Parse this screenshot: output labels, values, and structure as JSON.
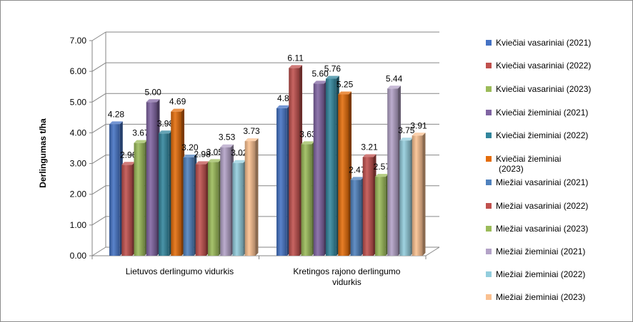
{
  "chart_data": {
    "type": "bar",
    "title": "",
    "xlabel": "",
    "ylabel": "Derlingumas t/ha",
    "ylim": [
      0,
      7
    ],
    "y_ticks": [
      "0.00",
      "1.00",
      "2.00",
      "3.00",
      "4.00",
      "5.00",
      "6.00",
      "7.00"
    ],
    "categories": [
      "Lietuvos derlingumo  vidurkis",
      "Kretingos rajono derlingumo vidurkis"
    ],
    "category_lines": [
      [
        "Lietuvos derlingumo  vidurkis"
      ],
      [
        "Kretingos rajono derlingumo",
        "vidurkis"
      ]
    ],
    "legend_position": "right",
    "series": [
      {
        "name": "Kviečiai vasariniai (2021)",
        "color": "#4472C4",
        "values": [
          4.28,
          4.8
        ],
        "labels": [
          "4.28",
          "4.8"
        ]
      },
      {
        "name": "Kviečiai vasariniai (2022)",
        "color": "#C0504D",
        "values": [
          2.96,
          6.11
        ],
        "labels": [
          "2.96",
          "6.11"
        ]
      },
      {
        "name": "Kviečiai vasariniai (2023)",
        "color": "#9BBB59",
        "values": [
          3.67,
          3.63
        ],
        "labels": [
          "3.67",
          "3.63"
        ]
      },
      {
        "name": "Kviečiai žieminiai (2021)",
        "color": "#8064A2",
        "values": [
          5.0,
          5.6
        ],
        "labels": [
          "5.00",
          "5.60"
        ]
      },
      {
        "name": "Kviečiai žieminiai (2022)",
        "color": "#31859C",
        "values": [
          3.98,
          5.76
        ],
        "labels": [
          "3.98",
          "5.76"
        ]
      },
      {
        "name": "Kviečiai žieminiai (2023)",
        "color": "#E46C0A",
        "values": [
          4.69,
          5.25
        ],
        "labels": [
          "4.69",
          "5.25"
        ]
      },
      {
        "name": "Miežiai vasariniai (2021)",
        "color": "#4F81BD",
        "values": [
          3.2,
          2.47
        ],
        "labels": [
          "3.20",
          "2.47"
        ]
      },
      {
        "name": "Miežiai vasariniai (2022)",
        "color": "#C0504D",
        "values": [
          2.98,
          3.21
        ],
        "labels": [
          "2.98",
          "3.21"
        ]
      },
      {
        "name": "Miežiai vasariniai (2023)",
        "color": "#9BBB59",
        "values": [
          3.05,
          2.57
        ],
        "labels": [
          "3.05",
          "2.57"
        ]
      },
      {
        "name": "Miežiai žieminiai (2021)",
        "color": "#B3A2C7",
        "values": [
          3.53,
          5.44
        ],
        "labels": [
          "3.53",
          "5.44"
        ]
      },
      {
        "name": "Miežiai žieminiai (2022)",
        "color": "#93CDDD",
        "values": [
          3.02,
          3.75
        ],
        "labels": [
          "3.02",
          "3.75"
        ]
      },
      {
        "name": "Miežiai žieminiai (2023)",
        "color": "#FAC090",
        "values": [
          3.73,
          3.91
        ],
        "labels": [
          "3.73",
          "3.91"
        ]
      }
    ]
  },
  "legend_lines": [
    [
      "Kviečiai vasariniai (2021)"
    ],
    [
      "Kviečiai vasariniai (2022)"
    ],
    [
      "Kviečiai vasariniai (2023)"
    ],
    [
      "Kviečiai žieminiai (2021)"
    ],
    [
      "Kviečiai žieminiai (2022)"
    ],
    [
      "Kviečiai žieminiai",
      "(2023)"
    ],
    [
      "Miežiai vasariniai (2021)"
    ],
    [
      "Miežiai vasariniai (2022)"
    ],
    [
      "Miežiai vasariniai (2023)"
    ],
    [
      "Miežiai žieminiai (2021)"
    ],
    [
      "Miežiai žieminiai (2022)"
    ],
    [
      "Miežiai žieminiai (2023)"
    ]
  ]
}
